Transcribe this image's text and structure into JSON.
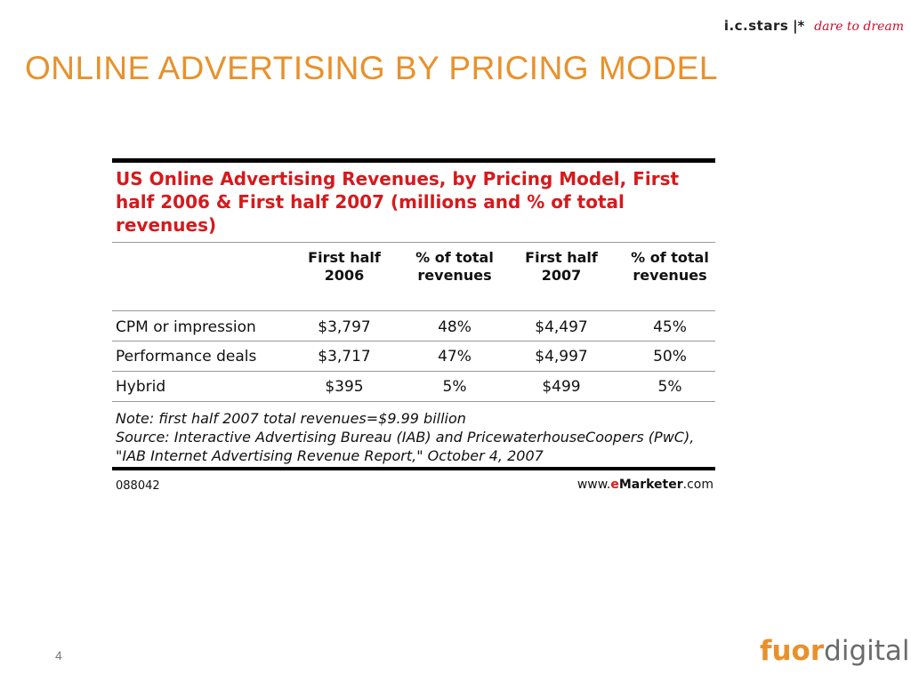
{
  "header": {
    "brand": "i.c.stars",
    "separator": "|*",
    "tagline": "dare to dream"
  },
  "slide": {
    "title": "ONLINE ADVERTISING BY PRICING MODEL",
    "page_number": "4"
  },
  "table": {
    "title": "US Online Advertising Revenues, by Pricing Model, First half 2006 & First half 2007 (millions and % of total revenues)",
    "columns": [
      "First half 2006",
      "% of total revenues",
      "First half 2007",
      "% of total revenues"
    ],
    "rows": [
      {
        "label": "CPM or impression",
        "values": [
          "$3,797",
          "48%",
          "$4,497",
          "45%"
        ]
      },
      {
        "label": "Performance deals",
        "values": [
          "$3,717",
          "47%",
          "$4,997",
          "50%"
        ]
      },
      {
        "label": "Hybrid",
        "values": [
          "$395",
          "5%",
          "$499",
          "5%"
        ]
      }
    ],
    "note": "Note: first half 2007 total revenues=$9.99 billion",
    "source": "Source: Interactive Advertising Bureau (IAB) and PricewaterhouseCoopers (PwC), \"IAB Internet Advertising Revenue Report,\" October 4, 2007",
    "id": "088042",
    "source_site": {
      "prefix": "www.",
      "e": "e",
      "brand": "Marketer",
      "suffix": ".com"
    }
  },
  "logo": {
    "part1": "fuor",
    "part2": "digital",
    "trademark": "™"
  }
}
